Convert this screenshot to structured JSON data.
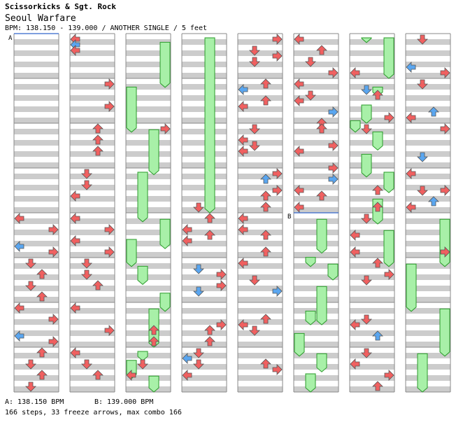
{
  "song": {
    "artist": "Scissorkicks & Sgt. Rock",
    "title": "Seoul Warfare",
    "info": "BPM: 138.150 - 139.000 / ANOTHER SINGLE / 5 feet"
  },
  "footer": {
    "bpm_a": "A: 138.150 BPM",
    "bpm_b": "B: 139.000 BPM",
    "stats": "166 steps, 33 freeze arrows, max combo 166"
  },
  "markers": {
    "a": "A",
    "b": "B"
  },
  "colors": {
    "red_arrow": "#f06060",
    "blue_arrow": "#5aa6f0",
    "freeze": "#a8f0a8",
    "stripe": "#cccccc",
    "marker_line": "#3366cc"
  },
  "icons": {
    "left": "arrow-left-icon",
    "down": "arrow-down-icon",
    "up": "arrow-up-icon",
    "right": "arrow-right-icon"
  },
  "chart_data": {
    "type": "step-chart",
    "lanes": [
      "left",
      "down",
      "up",
      "right"
    ],
    "measures_per_column": 8,
    "columns": 8,
    "total_measures": 64,
    "bpm_changes": [
      {
        "label": "A",
        "bpm": 138.15,
        "measure": 0
      },
      {
        "label": "B",
        "bpm": 139.0,
        "measure": 40
      }
    ],
    "notes": [
      [
        1,
        0.125,
        0
      ],
      [
        1,
        0.25,
        0
      ],
      [
        1,
        0.375,
        0
      ],
      [
        1,
        1.125,
        3
      ],
      [
        1,
        1.625,
        3
      ],
      [
        1,
        2.125,
        2
      ],
      [
        1,
        2.375,
        2
      ],
      [
        1,
        2.625,
        2
      ],
      [
        1,
        3.125,
        1
      ],
      [
        1,
        3.375,
        1
      ],
      [
        1,
        3.625,
        0
      ],
      [
        1,
        4.125,
        0
      ],
      [
        1,
        4.375,
        3
      ],
      [
        1,
        4.625,
        0
      ],
      [
        1,
        4.875,
        3
      ],
      [
        1,
        5.125,
        1
      ],
      [
        1,
        5.375,
        1
      ],
      [
        1,
        5.625,
        2
      ],
      [
        1,
        6.125,
        0
      ],
      [
        1,
        6.625,
        3
      ],
      [
        1,
        7.125,
        0
      ],
      [
        1,
        7.375,
        1
      ],
      [
        1,
        7.625,
        2
      ],
      [
        0,
        4.125,
        0
      ],
      [
        0,
        4.375,
        3
      ],
      [
        0,
        4.75,
        0
      ],
      [
        0,
        4.875,
        3
      ],
      [
        0,
        5.125,
        1
      ],
      [
        0,
        5.375,
        2
      ],
      [
        0,
        5.625,
        1
      ],
      [
        0,
        5.875,
        2
      ],
      [
        0,
        6.125,
        0
      ],
      [
        0,
        6.375,
        3
      ],
      [
        0,
        6.75,
        0
      ],
      [
        0,
        6.875,
        3
      ],
      [
        0,
        7.125,
        2
      ],
      [
        0,
        7.375,
        1
      ],
      [
        0,
        7.625,
        2
      ],
      [
        0,
        7.875,
        1
      ],
      [
        2,
        2.125,
        3
      ],
      [
        2,
        6.625,
        2
      ],
      [
        2,
        6.875,
        2
      ],
      [
        2,
        7.375,
        1
      ],
      [
        2,
        7.625,
        0
      ],
      [
        3,
        3.875,
        1
      ],
      [
        3,
        4.125,
        2
      ],
      [
        3,
        4.375,
        0
      ],
      [
        3,
        4.625,
        0
      ],
      [
        3,
        4.5,
        2
      ],
      [
        3,
        5.25,
        1
      ],
      [
        3,
        5.375,
        3
      ],
      [
        3,
        5.75,
        1
      ],
      [
        3,
        5.625,
        3
      ],
      [
        3,
        6.5,
        3
      ],
      [
        3,
        6.875,
        2
      ],
      [
        3,
        6.625,
        2
      ],
      [
        3,
        7.125,
        1
      ],
      [
        3,
        7.25,
        0
      ],
      [
        3,
        7.375,
        1
      ],
      [
        3,
        7.625,
        0
      ],
      [
        4,
        0.125,
        3
      ],
      [
        4,
        0.375,
        1
      ],
      [
        4,
        0.5,
        3
      ],
      [
        4,
        0.625,
        1
      ],
      [
        4,
        1.125,
        2
      ],
      [
        4,
        1.25,
        0
      ],
      [
        4,
        1.5,
        2
      ],
      [
        4,
        1.625,
        0
      ],
      [
        4,
        2.125,
        1
      ],
      [
        4,
        2.375,
        0
      ],
      [
        4,
        2.5,
        1
      ],
      [
        4,
        2.625,
        0
      ],
      [
        4,
        3.125,
        3
      ],
      [
        4,
        3.25,
        2
      ],
      [
        4,
        3.5,
        3
      ],
      [
        4,
        3.625,
        2
      ],
      [
        4,
        3.875,
        2
      ],
      [
        4,
        4.125,
        0
      ],
      [
        4,
        4.375,
        0
      ],
      [
        4,
        4.5,
        2
      ],
      [
        4,
        4.875,
        2
      ],
      [
        4,
        5.125,
        0
      ],
      [
        4,
        5.5,
        1
      ],
      [
        4,
        5.75,
        3
      ],
      [
        4,
        6.375,
        2
      ],
      [
        4,
        6.5,
        0
      ],
      [
        4,
        6.625,
        1
      ],
      [
        4,
        7.375,
        2
      ],
      [
        4,
        7.5,
        3
      ],
      [
        5,
        0.125,
        0
      ],
      [
        5,
        0.375,
        2
      ],
      [
        5,
        0.625,
        1
      ],
      [
        5,
        0.875,
        3
      ],
      [
        5,
        1.125,
        0
      ],
      [
        5,
        1.375,
        1
      ],
      [
        5,
        1.5,
        0
      ],
      [
        5,
        1.75,
        3
      ],
      [
        5,
        2,
        2
      ],
      [
        5,
        2.125,
        2
      ],
      [
        5,
        2.5,
        3
      ],
      [
        5,
        2.625,
        0
      ],
      [
        5,
        3,
        3
      ],
      [
        5,
        3.25,
        3
      ],
      [
        5,
        3.5,
        0
      ],
      [
        5,
        3.625,
        2
      ],
      [
        5,
        3.875,
        0
      ],
      [
        6,
        0.875,
        0
      ],
      [
        6,
        1.25,
        1
      ],
      [
        6,
        1.375,
        2
      ],
      [
        6,
        1.875,
        3
      ],
      [
        6,
        2.125,
        1
      ],
      [
        6,
        3.5,
        2
      ],
      [
        6,
        3.875,
        2
      ],
      [
        6,
        4.125,
        1
      ],
      [
        6,
        4.5,
        0
      ],
      [
        6,
        4.875,
        0
      ],
      [
        6,
        5.125,
        2
      ],
      [
        6,
        5.375,
        3
      ],
      [
        6,
        5.5,
        1
      ],
      [
        6,
        6.375,
        1
      ],
      [
        6,
        6.5,
        0
      ],
      [
        6,
        6.75,
        2
      ],
      [
        6,
        7.125,
        1
      ],
      [
        6,
        7.375,
        0
      ],
      [
        6,
        7.625,
        3
      ],
      [
        6,
        7.875,
        2
      ],
      [
        7,
        0.125,
        1
      ],
      [
        7,
        0.75,
        0
      ],
      [
        7,
        0.875,
        3
      ],
      [
        7,
        1.125,
        1
      ],
      [
        7,
        1.75,
        2
      ],
      [
        7,
        1.875,
        0
      ],
      [
        7,
        2.125,
        3
      ],
      [
        7,
        2.75,
        1
      ],
      [
        7,
        3.125,
        0
      ],
      [
        7,
        3.5,
        3
      ],
      [
        7,
        3.5,
        1
      ],
      [
        7,
        3.75,
        2
      ],
      [
        7,
        3.875,
        0
      ],
      [
        7,
        4.875,
        3
      ]
    ],
    "blue_measure_positions": [
      0.25,
      0.75
    ],
    "freezes": [
      [
        2,
        0,
        3,
        0.1,
        1.2
      ],
      [
        2,
        1,
        0,
        1.1,
        2.2
      ],
      [
        2,
        2,
        2,
        2.05,
        3.15
      ],
      [
        2,
        3,
        1,
        3.0,
        4.2
      ],
      [
        2,
        4,
        3,
        4.05,
        4.8
      ],
      [
        2,
        4,
        0,
        4.5,
        5.2
      ],
      [
        2,
        5,
        1,
        5.1,
        5.6
      ],
      [
        2,
        5,
        3,
        5.7,
        6.2
      ],
      [
        2,
        6,
        2,
        6.05,
        7.0
      ],
      [
        2,
        7,
        1,
        7.0,
        7.3
      ],
      [
        2,
        7,
        0,
        7.2,
        7.7
      ],
      [
        2,
        7,
        2,
        7.55,
        8.0
      ],
      [
        3,
        0,
        2,
        0,
        4.0
      ],
      [
        5,
        4,
        2,
        4.05,
        4.9
      ],
      [
        5,
        4,
        1,
        4.9,
        5.2
      ],
      [
        5,
        5,
        3,
        5.05,
        5.5
      ],
      [
        5,
        5,
        2,
        5.55,
        6.5
      ],
      [
        5,
        6,
        1,
        6.1,
        6.5
      ],
      [
        5,
        6,
        0,
        6.6,
        7.2
      ],
      [
        5,
        7,
        2,
        7.05,
        7.55
      ],
      [
        5,
        7,
        1,
        7.5,
        8.0
      ],
      [
        6,
        0,
        3,
        0.0,
        1.0
      ],
      [
        6,
        0,
        1,
        0.0,
        0.2
      ],
      [
        6,
        1,
        2,
        1.1,
        1.4
      ],
      [
        6,
        1,
        1,
        1.5,
        2.0
      ],
      [
        6,
        1,
        0,
        1.85,
        2.2
      ],
      [
        6,
        2,
        2,
        2.1,
        2.6
      ],
      [
        6,
        3,
        1,
        2.6,
        3.2
      ],
      [
        6,
        3,
        3,
        3.0,
        3.55
      ],
      [
        6,
        4,
        2,
        3.6,
        4.25
      ],
      [
        6,
        4,
        3,
        4.3,
        5.2
      ],
      [
        7,
        4,
        3,
        4.05,
        5.2
      ],
      [
        7,
        5,
        0,
        5.05,
        6.2
      ],
      [
        7,
        6,
        3,
        6.05,
        7.2
      ],
      [
        7,
        7,
        1,
        7.05,
        8.0
      ]
    ]
  }
}
